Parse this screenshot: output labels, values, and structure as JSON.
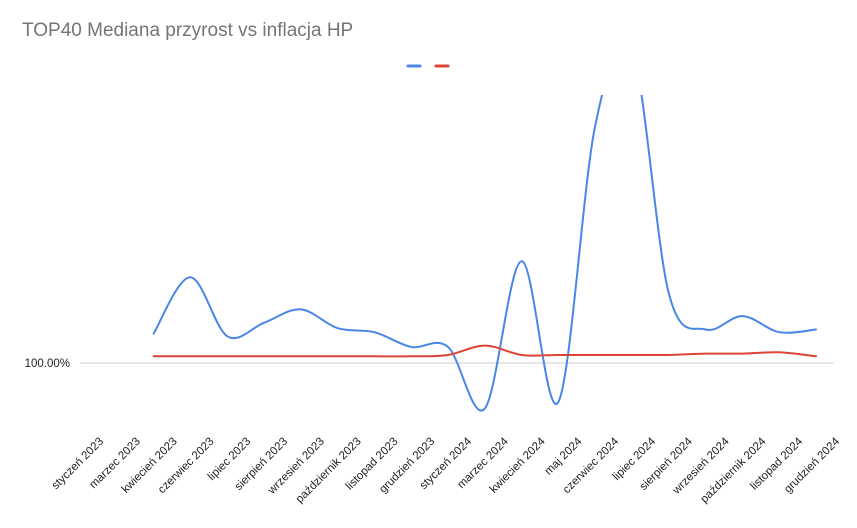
{
  "chart_data": {
    "type": "line",
    "title": "TOP40 Mediana przyrost vs inflacja HP",
    "xlabel": "",
    "ylabel": "",
    "categories": [
      "styczeń 2023",
      "marzec 2023",
      "kwiecień 2023",
      "czerwiec 2023",
      "lipiec 2023",
      "sierpień 2023",
      "wrzesień 2023",
      "październik 2023",
      "listopad 2023",
      "grudzień 2023",
      "styczeń 2024",
      "marzec 2024",
      "kwiecień 2024",
      "maj 2024",
      "czerwiec 2024",
      "lipiec 2024",
      "sierpień 2024",
      "wrzesień 2024",
      "październik 2024",
      "listopad 2024",
      "grudzień 2024"
    ],
    "y_ticks": [
      {
        "value": 1.0,
        "label": "100.00%"
      }
    ],
    "ylim": [
      0.95,
      1.2
    ],
    "legend": "top-center",
    "grid": false,
    "series": [
      {
        "color": "#4a86e8",
        "values": [
          null,
          null,
          1.022,
          1.064,
          1.02,
          1.03,
          1.04,
          1.026,
          1.023,
          1.012,
          1.012,
          0.966,
          1.076,
          0.971,
          1.177,
          1.234,
          1.052,
          1.025,
          1.035,
          1.023,
          1.025
        ]
      },
      {
        "color": "#db4437",
        "values": [
          null,
          null,
          1.005,
          1.005,
          1.005,
          1.005,
          1.005,
          1.005,
          1.005,
          1.005,
          1.006,
          1.013,
          1.006,
          1.006,
          1.006,
          1.006,
          1.006,
          1.007,
          1.007,
          1.008,
          1.005
        ]
      }
    ]
  }
}
